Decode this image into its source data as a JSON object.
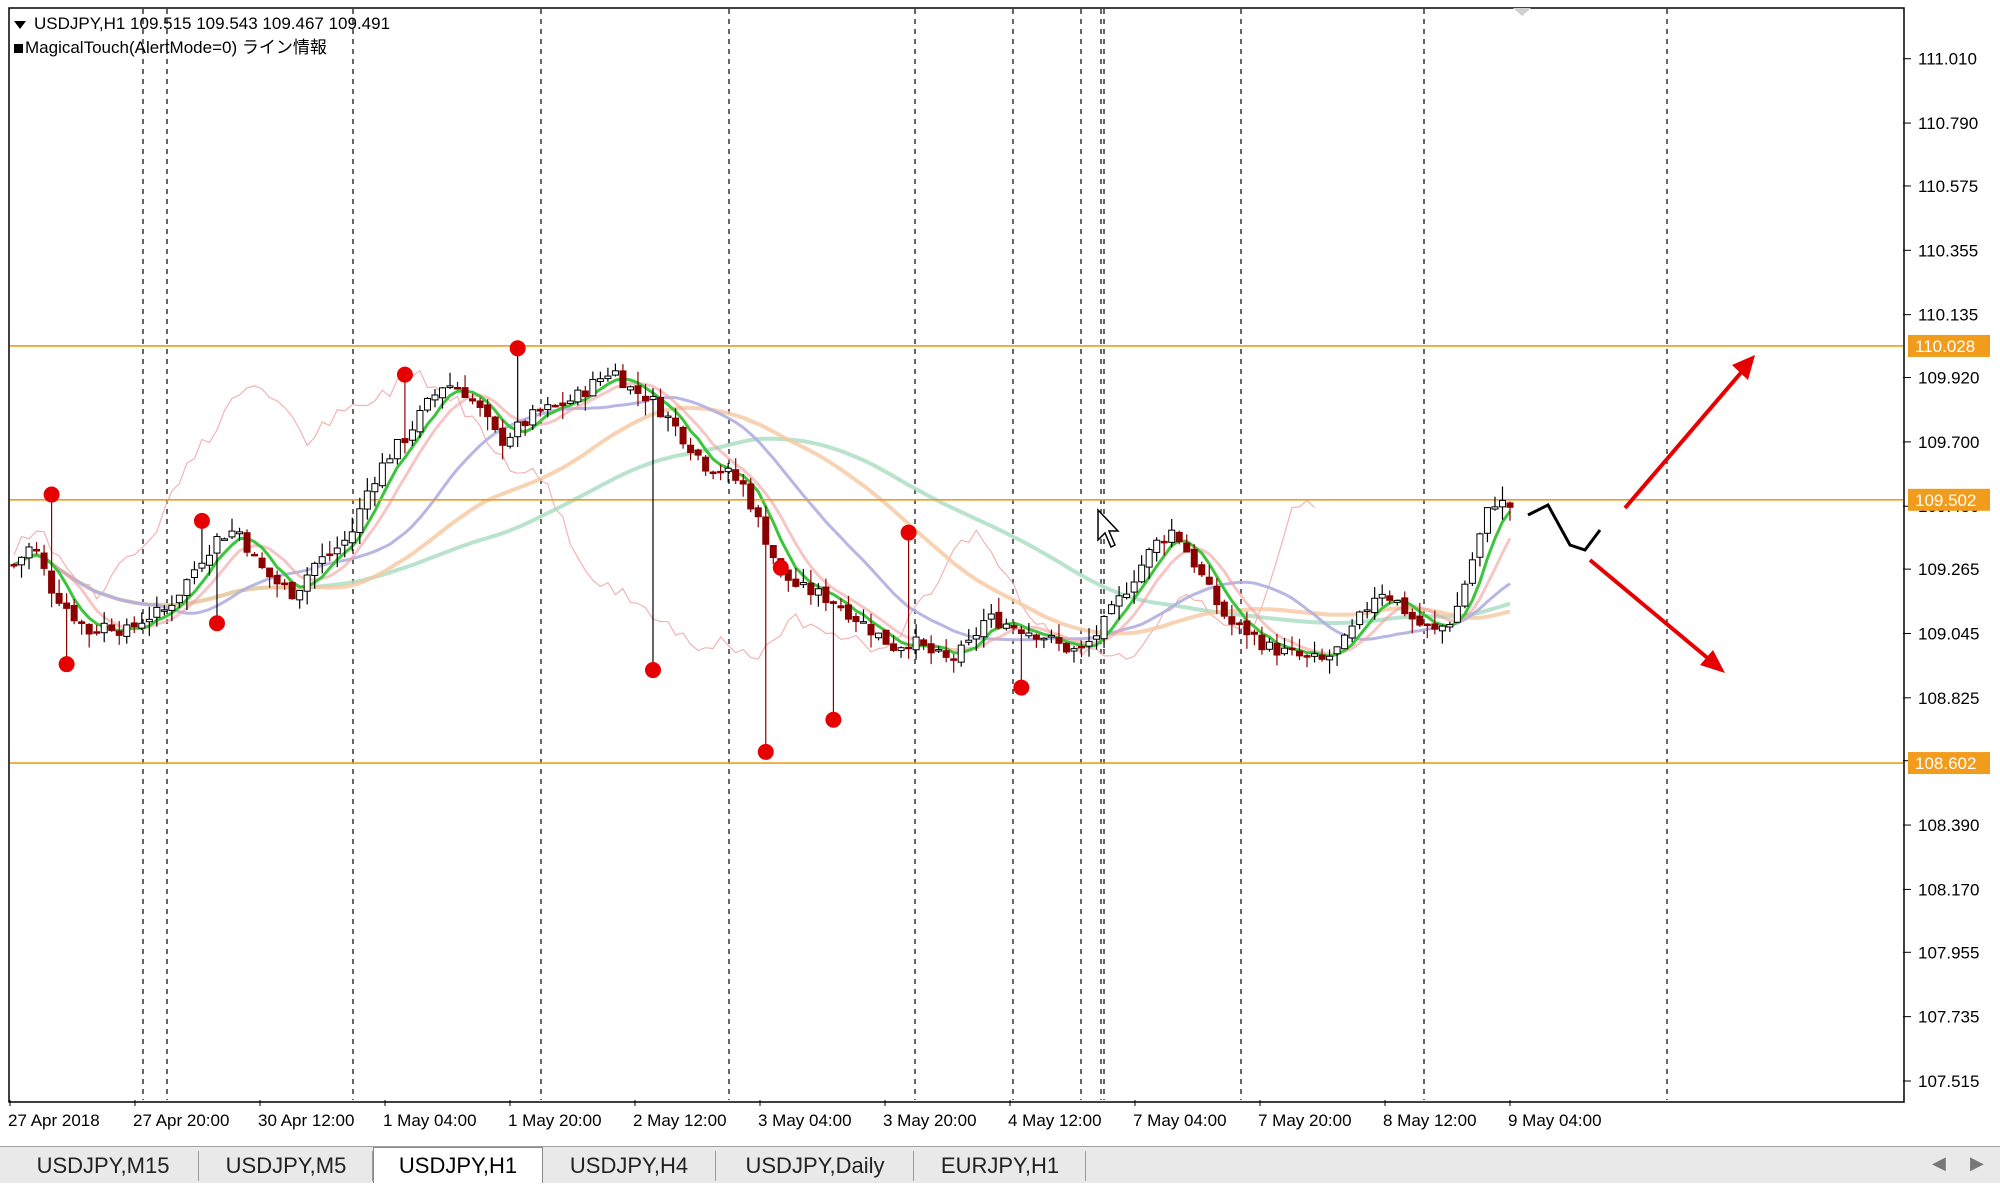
{
  "header": {
    "symbol_line": "USDJPY,H1  109.515 109.543 109.467 109.491",
    "indicator_line": "MagicalTouch(AlertMode=0) ライン情報"
  },
  "chart_data": {
    "type": "candlestick",
    "symbol": "USDJPY",
    "timeframe": "H1",
    "ohlc_shown": {
      "open": 109.515,
      "high": 109.543,
      "low": 109.467,
      "close": 109.491
    },
    "ylim": [
      107.45,
      111.18
    ],
    "y_ticks": [
      "111.010",
      "110.790",
      "110.575",
      "110.355",
      "110.135",
      "109.920",
      "109.700",
      "109.480",
      "109.265",
      "109.045",
      "108.825",
      "108.610",
      "108.390",
      "108.170",
      "107.955",
      "107.735",
      "107.515"
    ],
    "x_tick_labels": [
      "27 Apr 2018",
      "27 Apr 20:00",
      "30 Apr 12:00",
      "1 May 04:00",
      "1 May 20:00",
      "2 May 12:00",
      "3 May 04:00",
      "3 May 20:00",
      "4 May 12:00",
      "7 May 04:00",
      "7 May 20:00",
      "8 May 12:00",
      "9 May 04:00"
    ],
    "horizontal_lines": [
      {
        "price": 110.028,
        "label": "110.028",
        "color": "#f29c1e"
      },
      {
        "price": 109.502,
        "label": "109.502",
        "color": "#f29c1e"
      },
      {
        "price": 108.602,
        "label": "108.602",
        "color": "#f29c1e"
      }
    ],
    "close_path": [
      109.28,
      109.35,
      109.2,
      109.12,
      109.05,
      109.08,
      109.05,
      109.1,
      109.12,
      109.2,
      109.3,
      109.38,
      109.4,
      109.28,
      109.22,
      109.18,
      109.28,
      109.32,
      109.38,
      109.55,
      109.65,
      109.72,
      109.82,
      109.9,
      109.88,
      109.8,
      109.7,
      109.75,
      109.8,
      109.82,
      109.85,
      109.9,
      109.95,
      109.88,
      109.85,
      109.78,
      109.7,
      109.62,
      109.6,
      109.55,
      109.4,
      109.25,
      109.2,
      109.18,
      109.15,
      109.1,
      109.05,
      109.0,
      109.02,
      108.98,
      108.95,
      109.0,
      109.1,
      109.08,
      109.06,
      109.04,
      109.0,
      108.98,
      109.05,
      109.15,
      109.25,
      109.35,
      109.4,
      109.3,
      109.18,
      109.08,
      109.05,
      109.0,
      108.98,
      108.96,
      108.95,
      109.0,
      109.1,
      109.2,
      109.15,
      109.08,
      109.05,
      109.1,
      109.3,
      109.5,
      109.48
    ],
    "swing_points": [
      {
        "idx": 2,
        "price": 109.52
      },
      {
        "idx": 3,
        "price": 108.94
      },
      {
        "idx": 10,
        "price": 109.43
      },
      {
        "idx": 11,
        "price": 109.08
      },
      {
        "idx": 21,
        "price": 109.93
      },
      {
        "idx": 27,
        "price": 110.02
      },
      {
        "idx": 34,
        "price": 108.92
      },
      {
        "idx": 40,
        "price": 108.64
      },
      {
        "idx": 41,
        "price": 109.27
      },
      {
        "idx": 44,
        "price": 108.75
      },
      {
        "idx": 48,
        "price": 109.39
      },
      {
        "idx": 54,
        "price": 108.86
      }
    ],
    "arrows": [
      "up",
      "down"
    ],
    "colors": {
      "bull": "#000000",
      "bear": "#8b0000",
      "bull_fill": "#ffffff",
      "bear_fill": "#8b0000",
      "ma_fast": "#3cc43c",
      "ma_mid": "#b0aee0",
      "ma_slow": "#a8dcc0",
      "ma_peach": "#f5c8a0",
      "ma_pink": "#f0a0a0",
      "swing": "#e60000",
      "arrow": "#e60000",
      "level": "#f29c1e"
    }
  },
  "tabs": [
    {
      "label": "USDJPY,M15",
      "active": false
    },
    {
      "label": "USDJPY,M5",
      "active": false
    },
    {
      "label": "USDJPY,H1",
      "active": true
    },
    {
      "label": "USDJPY,H4",
      "active": false
    },
    {
      "label": "USDJPY,Daily",
      "active": false
    },
    {
      "label": "EURJPY,H1",
      "active": false
    }
  ]
}
